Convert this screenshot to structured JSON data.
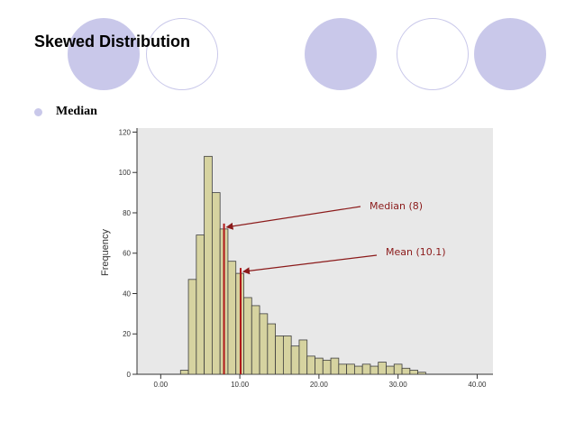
{
  "slide": {
    "title": "Skewed Distribution",
    "bullets": [
      {
        "text": "Median"
      }
    ]
  },
  "colors": {
    "decor": "#c9c8ea",
    "plot_bg": "#e8e8e8",
    "bar_fill": "#d6d3a0",
    "bar_stroke": "#3e3e3e",
    "marker": "#b01818",
    "annotation": "#8b1a1a"
  },
  "chart_data": {
    "type": "bar",
    "title": "",
    "xlabel": "",
    "ylabel": "Frequency",
    "xlim": [
      -3,
      42
    ],
    "ylim": [
      0,
      122
    ],
    "xticks": [
      0,
      10,
      20,
      30,
      40
    ],
    "xtick_labels": [
      "0.00",
      "10.00",
      "20.00",
      "30.00",
      "40.00"
    ],
    "yticks": [
      0,
      20,
      40,
      60,
      80,
      100,
      120
    ],
    "ytick_labels": [
      "0",
      "20",
      "40",
      "60",
      "80",
      "100",
      "120"
    ],
    "bin_start": 2.5,
    "bin_width": 1,
    "frequencies": [
      2,
      47,
      69,
      108,
      90,
      72,
      56,
      50,
      38,
      34,
      30,
      25,
      19,
      19,
      14,
      17,
      9,
      8,
      7,
      8,
      5,
      5,
      4,
      5,
      4,
      6,
      4,
      5,
      3,
      2,
      1
    ],
    "markers": [
      {
        "name": "Median",
        "value": 8,
        "label": "Median (8)"
      },
      {
        "name": "Mean",
        "value": 10.1,
        "label": "Mean (10.1)"
      }
    ],
    "grid": false,
    "legend": "none"
  }
}
